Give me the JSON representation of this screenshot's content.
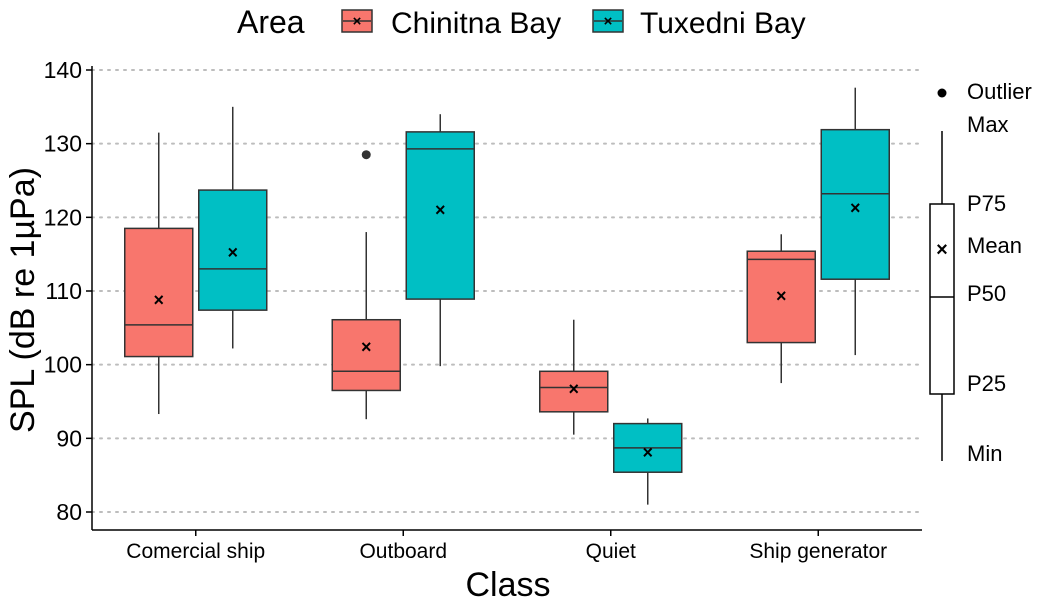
{
  "chart_data": {
    "type": "boxplot",
    "xlabel": "Class",
    "ylabel": "SPL (dB re 1µPa)",
    "ylim": [
      79,
      141
    ],
    "yticks": [
      80,
      90,
      100,
      110,
      120,
      130,
      140
    ],
    "grid": "horizontal dotted",
    "categories": [
      "Comercial ship",
      "Outboard",
      "Quiet",
      "Ship generator"
    ],
    "legend": {
      "title": "Area",
      "position": "top",
      "entries": [
        "Chinitna Bay",
        "Tuxedni Bay"
      ]
    },
    "series": [
      {
        "name": "Chinitna Bay",
        "color": "#F8766D",
        "boxes": [
          {
            "min": 93.3,
            "q1": 101.1,
            "median": 105.4,
            "q3": 118.5,
            "max": 131.5,
            "mean": 108.8,
            "outliers": []
          },
          {
            "min": 92.6,
            "q1": 96.5,
            "median": 99.1,
            "q3": 106.1,
            "max": 118.0,
            "mean": 102.4,
            "outliers": [
              128.5
            ]
          },
          {
            "min": 90.5,
            "q1": 93.6,
            "median": 96.9,
            "q3": 99.1,
            "max": 106.1,
            "mean": 96.7,
            "outliers": []
          },
          {
            "min": 97.5,
            "q1": 103.0,
            "median": 114.3,
            "q3": 115.4,
            "max": 117.7,
            "mean": 109.3,
            "outliers": []
          }
        ]
      },
      {
        "name": "Tuxedni Bay",
        "color": "#00BFC4",
        "boxes": [
          {
            "min": 102.2,
            "q1": 107.4,
            "median": 113.0,
            "q3": 123.7,
            "max": 135.0,
            "mean": 115.2,
            "outliers": []
          },
          {
            "min": 99.8,
            "q1": 108.9,
            "median": 129.3,
            "q3": 131.6,
            "max": 134.0,
            "mean": 121.0,
            "outliers": []
          },
          {
            "min": 81.0,
            "q1": 85.4,
            "median": 88.7,
            "q3": 92.0,
            "max": 92.7,
            "mean": 88.1,
            "outliers": []
          },
          {
            "min": 101.3,
            "q1": 111.6,
            "median": 123.2,
            "q3": 131.9,
            "max": 137.6,
            "mean": 121.3,
            "outliers": []
          }
        ]
      }
    ],
    "key_diagram": {
      "labels": {
        "outlier": "Outlier",
        "max": "Max",
        "p75": "P75",
        "mean": "Mean",
        "p50": "P50",
        "p25": "P25",
        "min": "Min"
      }
    }
  }
}
